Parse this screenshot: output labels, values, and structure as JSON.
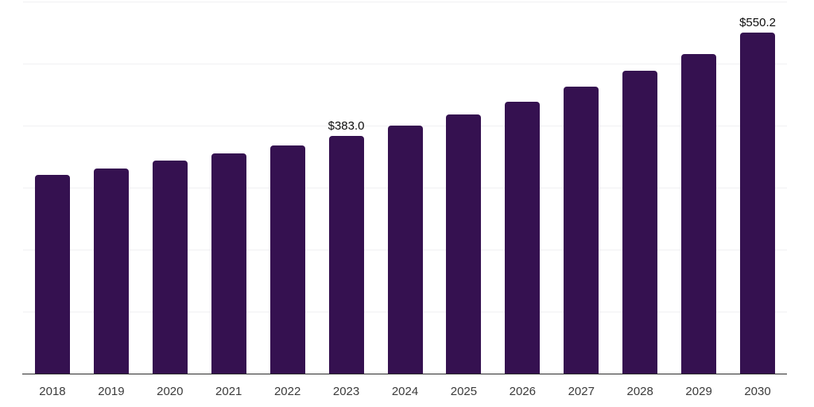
{
  "chart_data": {
    "type": "bar",
    "title": "",
    "xlabel": "",
    "ylabel": "",
    "categories": [
      "2018",
      "2019",
      "2020",
      "2021",
      "2022",
      "2023",
      "2024",
      "2025",
      "2026",
      "2027",
      "2028",
      "2029",
      "2030"
    ],
    "values": [
      320.5,
      331.0,
      343.0,
      355.0,
      368.0,
      383.0,
      400.0,
      418.5,
      438.5,
      463.0,
      488.0,
      516.0,
      550.2
    ],
    "data_labels": [
      "",
      "",
      "",
      "",
      "",
      "$383.0",
      "",
      "",
      "",
      "",
      "",
      "",
      "$550.2"
    ],
    "ylim": [
      0,
      600
    ],
    "gridline_step": 100,
    "grid": true,
    "legend": false,
    "value_prefix": "$"
  },
  "colors": {
    "bar": "#351150",
    "gridline": "#f0f0f2",
    "axis_line": "#2b2b2b",
    "tick_label": "#3b3b3b",
    "data_label": "#0d0d0d",
    "background": "#ffffff"
  }
}
